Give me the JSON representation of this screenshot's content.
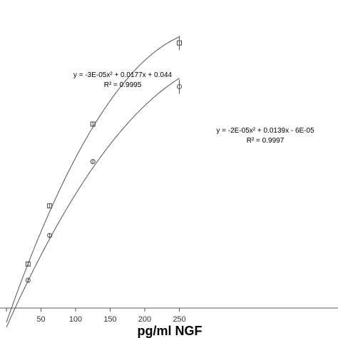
{
  "chart_data": {
    "type": "scatter",
    "xlabel": "pg/ml NGF",
    "ylabel": "",
    "title": "",
    "xlim": [
      0,
      270
    ],
    "x_ticks": [
      "50",
      "100",
      "150",
      "200",
      "250"
    ],
    "series": [
      {
        "marker": "square",
        "points": [
          [
            31.25,
            0.565
          ],
          [
            62.5,
            1.085
          ],
          [
            125,
            1.815
          ],
          [
            250,
            2.54
          ]
        ],
        "curve": [
          -3e-05,
          0.0177,
          0.044
        ]
      },
      {
        "marker": "circle",
        "points": [
          [
            31.25,
            0.42
          ],
          [
            62.5,
            0.82
          ],
          [
            125,
            1.48
          ],
          [
            250,
            2.15
          ]
        ],
        "curve": [
          -2e-05,
          0.0139,
          -6e-05
        ]
      }
    ],
    "annotations": [
      {
        "line1": "y = -3E-05x² + 0.0177x + 0.044",
        "line2": "R² = 0.9995"
      },
      {
        "line1": "y = -2E-05x² + 0.0139x - 6E-05",
        "line2": "R² = 0.9997"
      }
    ]
  }
}
